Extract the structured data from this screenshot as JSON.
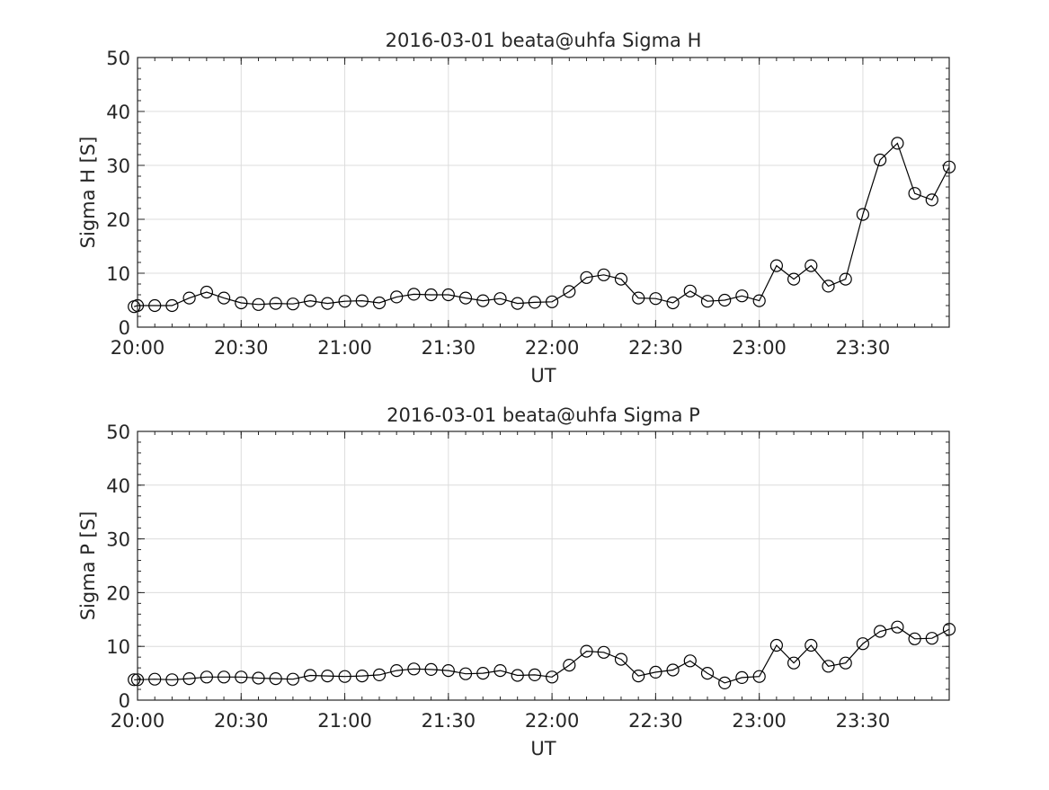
{
  "chart_data": [
    {
      "type": "line",
      "title": "2016-03-01  beata@uhfa Sigma H",
      "xlabel": "UT",
      "ylabel": "Sigma H [S]",
      "xlim": [
        "20:00",
        "23:55"
      ],
      "ylim": [
        0,
        50
      ],
      "grid": true,
      "marker": "open-circle",
      "line_color": "#000000",
      "x_ticks": [
        "20:00",
        "20:30",
        "21:00",
        "21:30",
        "22:00",
        "22:30",
        "23:00",
        "23:30"
      ],
      "y_ticks": [
        "0",
        "10",
        "20",
        "30",
        "40",
        "50"
      ],
      "x": [
        "19:59",
        "20:00",
        "20:05",
        "20:10",
        "20:15",
        "20:20",
        "20:25",
        "20:30",
        "20:35",
        "20:40",
        "20:45",
        "20:50",
        "20:55",
        "21:00",
        "21:05",
        "21:10",
        "21:15",
        "21:20",
        "21:25",
        "21:30",
        "21:35",
        "21:40",
        "21:45",
        "21:50",
        "21:55",
        "22:00",
        "22:05",
        "22:10",
        "22:15",
        "22:20",
        "22:25",
        "22:30",
        "22:35",
        "22:40",
        "22:45",
        "22:50",
        "22:55",
        "23:00",
        "23:05",
        "23:10",
        "23:15",
        "23:20",
        "23:25",
        "23:30",
        "23:35",
        "23:40",
        "23:45",
        "23:50",
        "23:55"
      ],
      "values": [
        3.8,
        4.0,
        4.0,
        4.0,
        5.4,
        6.5,
        5.4,
        4.5,
        4.2,
        4.4,
        4.3,
        4.9,
        4.4,
        4.8,
        4.9,
        4.5,
        5.6,
        6.1,
        6.0,
        6.0,
        5.4,
        4.9,
        5.3,
        4.4,
        4.6,
        4.7,
        6.6,
        9.2,
        9.7,
        8.9,
        5.4,
        5.3,
        4.5,
        6.7,
        4.8,
        5.0,
        5.8,
        4.9,
        11.4,
        8.9,
        11.4,
        7.6,
        8.9,
        20.9,
        31.0,
        34.1,
        24.8,
        23.6,
        29.7
      ]
    },
    {
      "type": "line",
      "title": "2016-03-01  beata@uhfa Sigma P",
      "xlabel": "UT",
      "ylabel": "Sigma P [S]",
      "xlim": [
        "20:00",
        "23:55"
      ],
      "ylim": [
        0,
        50
      ],
      "grid": true,
      "marker": "open-circle",
      "line_color": "#000000",
      "x_ticks": [
        "20:00",
        "20:30",
        "21:00",
        "21:30",
        "22:00",
        "22:30",
        "23:00",
        "23:30"
      ],
      "y_ticks": [
        "0",
        "10",
        "20",
        "30",
        "40",
        "50"
      ],
      "x": [
        "19:59",
        "20:00",
        "20:05",
        "20:10",
        "20:15",
        "20:20",
        "20:25",
        "20:30",
        "20:35",
        "20:40",
        "20:45",
        "20:50",
        "20:55",
        "21:00",
        "21:05",
        "21:10",
        "21:15",
        "21:20",
        "21:25",
        "21:30",
        "21:35",
        "21:40",
        "21:45",
        "21:50",
        "21:55",
        "22:00",
        "22:05",
        "22:10",
        "22:15",
        "22:20",
        "22:25",
        "22:30",
        "22:35",
        "22:40",
        "22:45",
        "22:50",
        "22:55",
        "23:00",
        "23:05",
        "23:10",
        "23:15",
        "23:20",
        "23:25",
        "23:30",
        "23:35",
        "23:40",
        "23:45",
        "23:50",
        "23:55"
      ],
      "values": [
        3.8,
        3.8,
        3.9,
        3.8,
        4.0,
        4.3,
        4.3,
        4.3,
        4.1,
        4.0,
        3.9,
        4.6,
        4.5,
        4.4,
        4.5,
        4.7,
        5.5,
        5.8,
        5.7,
        5.5,
        4.9,
        5.0,
        5.5,
        4.6,
        4.7,
        4.3,
        6.5,
        9.1,
        8.9,
        7.6,
        4.5,
        5.2,
        5.6,
        7.3,
        5.0,
        3.2,
        4.2,
        4.4,
        10.2,
        6.9,
        10.2,
        6.3,
        6.9,
        10.5,
        12.8,
        13.6,
        11.4,
        11.5,
        13.2
      ]
    }
  ]
}
